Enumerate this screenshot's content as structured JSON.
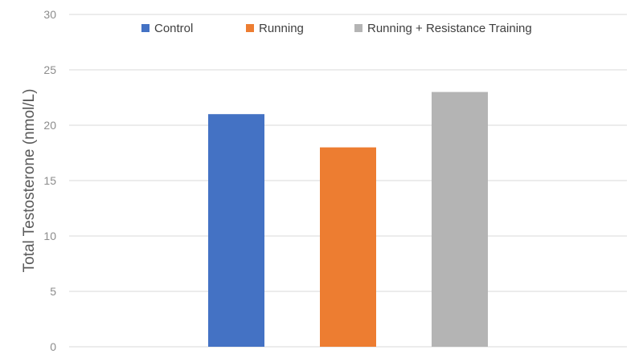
{
  "chart_data": {
    "type": "bar",
    "title": "",
    "xlabel": "",
    "ylabel": "Total Testosterone (nmol/L)",
    "ylim": [
      0,
      30
    ],
    "yticks": [
      0,
      5,
      10,
      15,
      20,
      25,
      30
    ],
    "grid": true,
    "legend_position": "top",
    "series": [
      {
        "name": "Control",
        "values": [
          21
        ],
        "color": "#4472c4"
      },
      {
        "name": "Running",
        "values": [
          18
        ],
        "color": "#ed7d31"
      },
      {
        "name": "Running + Resistance Training",
        "values": [
          23
        ],
        "color": "#b4b4b4"
      }
    ]
  }
}
